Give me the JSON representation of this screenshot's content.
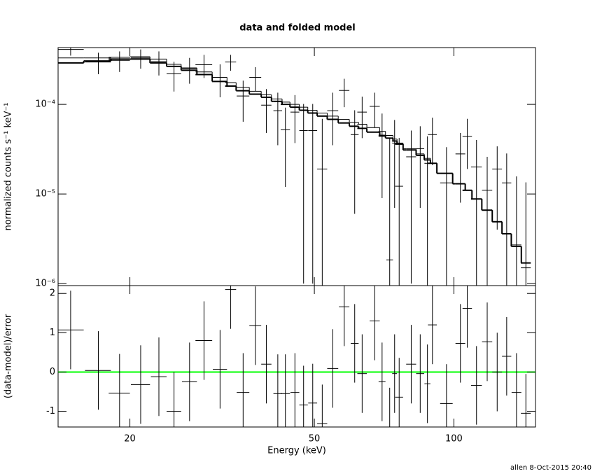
{
  "chart_data": [
    {
      "type": "errorbar",
      "title": "data and folded model",
      "ylabel": "normalized counts s⁻¹ keV⁻¹",
      "xlog": true,
      "ylog": true,
      "xlim": [
        14,
        150
      ],
      "ylim": [
        9.5e-07,
        0.00043
      ],
      "xticks": [
        20,
        50,
        100
      ],
      "yticks": [
        {
          "value": 1e-06,
          "label": "10⁻⁶"
        },
        {
          "value": 1e-05,
          "label": "10⁻⁵"
        },
        {
          "value": 0.0001,
          "label": "10⁻⁴"
        }
      ],
      "x": [
        14.9,
        17.1,
        19.0,
        21.1,
        23.1,
        24.9,
        26.9,
        28.9,
        31.3,
        33.0,
        35.1,
        37.3,
        39.4,
        41.7,
        43.3,
        45.4,
        47.4,
        49.6,
        52.0,
        54.8,
        58.0,
        61.1,
        63.4,
        67.5,
        70.0,
        72.7,
        74.5,
        76.2,
        80.9,
        84.6,
        87.7,
        89.9,
        96.4,
        103.3,
        106.9,
        111.9,
        118,
        124,
        130,
        136.5,
        143
      ],
      "xerr": [
        1.0,
        1.1,
        1.0,
        1.0,
        0.9,
        0.9,
        1.0,
        1.2,
        1.1,
        0.9,
        1.1,
        1.1,
        1.0,
        0.9,
        1.0,
        1.0,
        1.0,
        1.1,
        1.3,
        1.5,
        1.5,
        1.2,
        1.5,
        1.7,
        1.2,
        1.2,
        0.9,
        1.5,
        2.0,
        1.7,
        1.3,
        2.0,
        3.0,
        2.5,
        2.5,
        3.0,
        3.0,
        3.0,
        3.0,
        3.3,
        3.5
      ],
      "series": [
        {
          "color": "#000000",
          "values": [
            0.00041,
            0.000297,
            0.00031,
            0.00033,
            0.0003,
            0.000219,
            0.00025,
            0.000277,
            0.0002,
            0.000297,
            0.000124,
            0.0002,
            9.8e-05,
            8.5e-05,
            5.2e-05,
            8.2e-05,
            5.1e-05,
            5.1e-05,
            1.9e-05,
            8.5e-05,
            0.000143,
            4.6e-05,
            8.2e-05,
            9.5e-05,
            4.4e-05,
            1.84e-06,
            3.7e-05,
            1.22e-05,
            2.6e-05,
            3.2e-05,
            2.2e-05,
            4.6e-05,
            1.33e-05,
            2.8e-05,
            4.4e-05,
            2e-05,
            1.1e-05,
            1.9e-05,
            1.33e-05,
            2.7e-06,
            1.5e-06
          ],
          "errors": [
            6e-05,
            8e-05,
            8e-05,
            8e-05,
            9e-05,
            8e-05,
            8e-05,
            8e-05,
            8e-05,
            6e-05,
            6e-05,
            6e-05,
            5e-05,
            5e-05,
            4e-05,
            4.5e-05,
            5e-05,
            5e-05,
            5e-05,
            5e-05,
            5e-05,
            4e-05,
            4e-05,
            4e-05,
            3.5e-05,
            4e-05,
            3e-05,
            3e-05,
            2.5e-05,
            2.5e-05,
            2.2e-05,
            2.5e-05,
            2e-05,
            2e-05,
            2.5e-05,
            2e-05,
            1.5e-05,
            1.5e-05,
            1.5e-05,
            1.3e-05,
            1.2e-05
          ]
        },
        {
          "color": "#000000",
          "width": 2,
          "values": [
            0.00029,
            0.000305,
            0.00032,
            0.00032,
            0.00029,
            0.000265,
            0.00024,
            0.000215,
            0.00018,
            0.00016,
            0.000142,
            0.00013,
            0.00012,
            0.000108,
            0.0001,
            9.3e-05,
            8.6e-05,
            8e-05,
            7.4e-05,
            6.8e-05,
            6.2e-05,
            5.7e-05,
            5.4e-05,
            4.9e-05,
            4.5e-05,
            4.2e-05,
            3.9e-05,
            3.6e-05,
            3.1e-05,
            2.7e-05,
            2.4e-05,
            2.2e-05,
            1.7e-05,
            1.3e-05,
            1.1e-05,
            8.8e-06,
            6.6e-06,
            4.9e-06,
            3.6e-06,
            2.6e-06,
            1.7e-06
          ]
        },
        {
          "color": "#000000",
          "width": 1,
          "values": [
            0.00033,
            0.00033,
            0.000335,
            0.00034,
            0.00032,
            0.00028,
            0.000255,
            0.00023,
            0.0002,
            0.000175,
            0.000155,
            0.00014,
            0.000128,
            0.000115,
            0.000106,
            0.0001,
            9.3e-05,
            8.6e-05,
            8e-05,
            7.4e-05,
            6.8e-05,
            6.3e-05,
            6e-05,
            5.5e-05,
            5e-05,
            4.5e-05,
            4.1e-05,
            3.7e-05,
            3.2e-05,
            2.8e-05,
            2.5e-05,
            2.2e-05,
            1.7e-05,
            1.3e-05,
            1.1e-05,
            8.8e-06,
            6.6e-06,
            4.9e-06,
            3.6e-06,
            2.6e-06,
            1.7e-06
          ]
        }
      ]
    },
    {
      "type": "errorbar",
      "ylabel": "(data-model)/error",
      "xlabel": "Energy (keV)",
      "xlog": true,
      "ylog": false,
      "xlim": [
        14,
        150
      ],
      "ylim": [
        -1.4,
        2.2
      ],
      "xticks": [
        20,
        50,
        100
      ],
      "yticks": [
        -1,
        0,
        1,
        2
      ],
      "reference_line": {
        "value": 0,
        "color": "#00ff00"
      },
      "x": [
        14.9,
        17.1,
        19.0,
        21.1,
        23.1,
        24.9,
        26.9,
        28.9,
        31.3,
        33.0,
        35.1,
        37.3,
        39.4,
        41.7,
        43.3,
        45.4,
        47.4,
        49.6,
        52.0,
        54.8,
        58.0,
        61.1,
        63.4,
        67.5,
        70.0,
        72.7,
        74.5,
        76.2,
        80.9,
        84.6,
        87.7,
        89.9,
        96.4,
        103.3,
        106.9,
        111.9,
        118,
        124,
        130,
        136.5,
        143
      ],
      "xerr": [
        1.0,
        1.1,
        1.0,
        1.0,
        0.9,
        0.9,
        1.0,
        1.2,
        1.1,
        0.9,
        1.1,
        1.1,
        1.0,
        0.9,
        1.0,
        1.0,
        1.0,
        1.1,
        1.3,
        1.5,
        1.5,
        1.2,
        1.5,
        1.7,
        1.2,
        1.2,
        0.9,
        1.5,
        2.0,
        1.7,
        1.3,
        2.0,
        3.0,
        2.5,
        2.5,
        3.0,
        3.0,
        3.0,
        3.0,
        3.3,
        3.5
      ],
      "series": [
        {
          "color": "#000000",
          "values": [
            1.07,
            0.04,
            -0.54,
            -0.32,
            -0.12,
            -1.0,
            -0.25,
            0.8,
            0.07,
            2.1,
            -0.52,
            1.18,
            0.2,
            -0.55,
            -0.55,
            -0.52,
            -0.84,
            -0.79,
            -1.32,
            0.09,
            1.66,
            0.73,
            -0.04,
            1.3,
            -0.25,
            -1.4,
            -0.04,
            -0.64,
            0.2,
            -0.04,
            -0.3,
            1.2,
            -0.8,
            0.73,
            1.62,
            -0.34,
            0.77,
            0,
            0.4,
            -0.52,
            -1.05
          ],
          "errors": [
            1,
            1,
            1,
            1,
            1,
            1,
            1,
            1,
            1,
            1,
            1,
            1,
            1,
            1,
            1,
            1,
            1,
            1,
            1,
            1,
            1,
            1,
            1,
            1,
            1,
            1,
            1,
            1,
            1,
            1,
            1,
            1,
            1,
            1,
            1,
            1,
            1,
            1,
            1,
            1,
            1
          ]
        }
      ]
    }
  ],
  "footer": "allen  8-Oct-2015 20:40"
}
